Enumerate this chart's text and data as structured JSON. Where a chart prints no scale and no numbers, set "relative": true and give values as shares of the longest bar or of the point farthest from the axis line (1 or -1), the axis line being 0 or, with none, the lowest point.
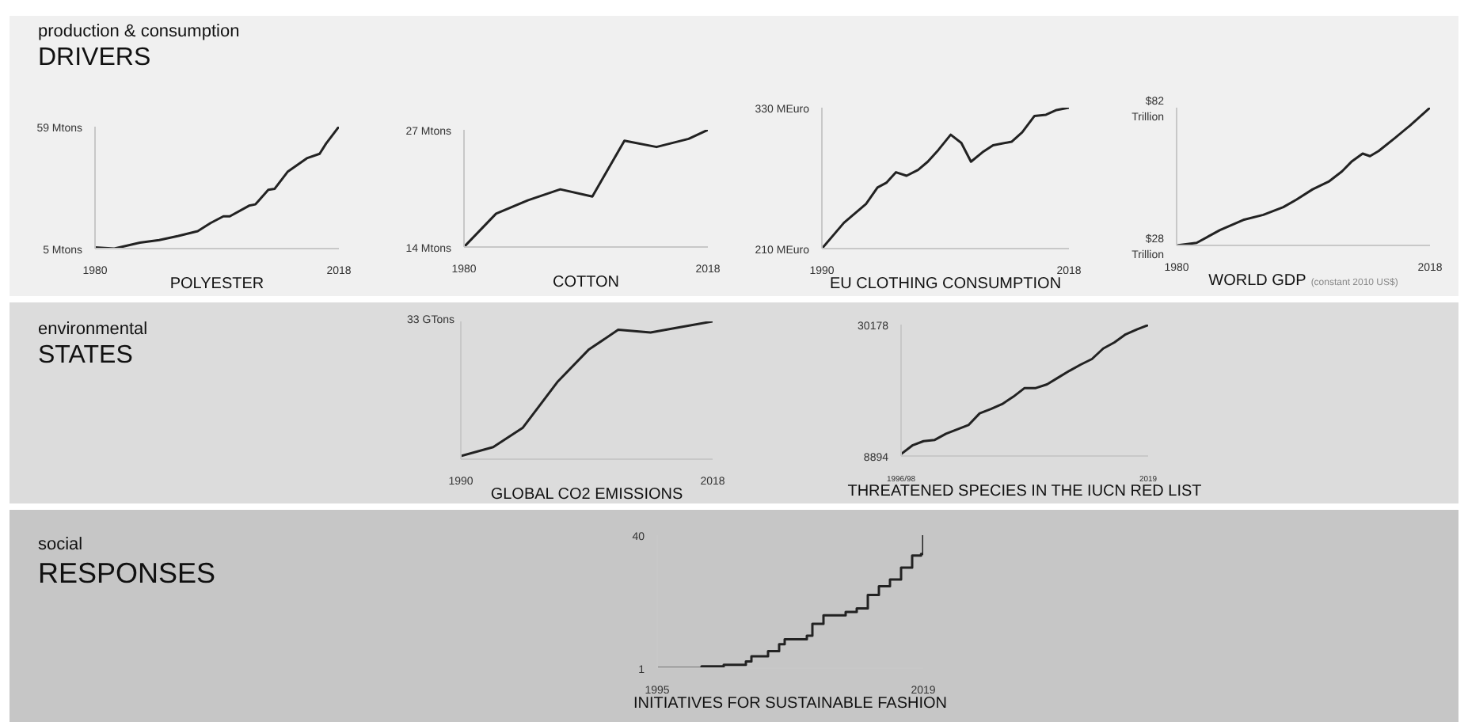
{
  "chart_data": [
    {
      "type": "other",
      "subtitle": "production & consumption",
      "title": "DRIVERS"
    },
    {
      "type": "line",
      "xlabel": "POLYESTER",
      "x": [
        1980,
        1983,
        1987,
        1990,
        1993,
        1996,
        1998,
        2000,
        2001,
        2004,
        2005,
        2007,
        2008,
        2010,
        2013,
        2015,
        2016,
        2018
      ],
      "series": [
        {
          "color": "#222222",
          "values": [
            5.5,
            5,
            7.6,
            8.8,
            10.6,
            12.7,
            16.3,
            19.3,
            19.3,
            24,
            24.6,
            31,
            31.5,
            39,
            45,
            47,
            51.5,
            59
          ]
        }
      ],
      "xlim": [
        1980,
        2018
      ],
      "xticks": [
        1980,
        2018
      ],
      "ylim": [
        5,
        59
      ],
      "yticks": [
        {
          "value": 5,
          "label": "5 Mtons"
        },
        {
          "value": 59,
          "label": "59 Mtons"
        }
      ]
    },
    {
      "type": "line",
      "xlabel": "COTTON",
      "x": [
        1980,
        1985,
        1990,
        1995,
        2000,
        2005,
        2010,
        2015,
        2018
      ],
      "series": [
        {
          "color": "#222222",
          "values": [
            14,
            17.7,
            19.2,
            20.4,
            19.6,
            25.8,
            25.1,
            26,
            27
          ]
        }
      ],
      "xlim": [
        1980,
        2018
      ],
      "xticks": [
        1980,
        2018
      ],
      "ylim": [
        14,
        27
      ],
      "yticks": [
        {
          "value": 14,
          "label": "14 Mtons"
        },
        {
          "value": 27,
          "label": "27 Mtons"
        }
      ]
    },
    {
      "type": "line",
      "xlabel": "EU CLOTHING CONSUMPTION",
      "x": [
        1990,
        1992.5,
        1995,
        1996.3,
        1997.3,
        1998.4,
        1999.6,
        2000.9,
        2002,
        2003.2,
        2004.6,
        2005.8,
        2006.9,
        2008.2,
        2009.4,
        2011.5,
        2012.7,
        2014.1,
        2015.4,
        2016.6,
        2018
      ],
      "series": [
        {
          "color": "#222222",
          "values": [
            210,
            232,
            248,
            262,
            266,
            275,
            272,
            277,
            284,
            294,
            307,
            300,
            284,
            292,
            298,
            301,
            309,
            323,
            324,
            328,
            330
          ]
        }
      ],
      "xlim": [
        1990,
        2018
      ],
      "xticks": [
        1990,
        2018
      ],
      "ylim": [
        210,
        330
      ],
      "yticks": [
        {
          "value": 210,
          "label": "210 MEuro"
        },
        {
          "value": 330,
          "label": "330 MEuro"
        }
      ]
    },
    {
      "type": "line",
      "xlabel": "WORLD GDP",
      "annotations": [
        "(constant 2010 US$)"
      ],
      "x": [
        1980,
        1983,
        1986.5,
        1990,
        1993,
        1996,
        1998,
        2000.4,
        2002.8,
        2004.8,
        2006.3,
        2007.9,
        2009,
        2010.3,
        2012.7,
        2015,
        2018
      ],
      "series": [
        {
          "color": "#222222",
          "values": [
            28,
            29,
            34,
            38,
            40,
            43,
            46,
            50,
            53,
            57,
            61,
            64,
            63,
            65,
            70,
            75,
            82
          ]
        }
      ],
      "xlim": [
        1980,
        2018
      ],
      "xticks": [
        1980,
        2018
      ],
      "ylim": [
        28,
        82
      ],
      "yticks": [
        {
          "value": 28,
          "label": "$28\nTrillion"
        },
        {
          "value": 82,
          "label": "$82\nTrillion"
        }
      ]
    },
    {
      "type": "other",
      "subtitle": "environmental",
      "title": "STATES"
    },
    {
      "type": "line",
      "relative": true,
      "xlabel": "GLOBAL CO2 EMISSIONS",
      "annotations": [
        "33 GTons"
      ],
      "x": [
        1990,
        1993.6,
        1996.9,
        2000.8,
        2004.2,
        2007.5,
        2011.1,
        2014.4,
        2018
      ],
      "series": [
        {
          "color": "#222222",
          "values": [
            0.023,
            0.088,
            0.229,
            0.565,
            0.794,
            0.939,
            0.92,
            0.958,
            1
          ]
        }
      ],
      "xlim": [
        1990,
        2018
      ],
      "xticks": [
        1990,
        2018
      ]
    },
    {
      "type": "line",
      "xlabel": "THREATENED SPECIES IN THE IUCN RED LIST",
      "categories": [
        "1996/98",
        null,
        null,
        null,
        null,
        null,
        null,
        null,
        null,
        null,
        null,
        null,
        null,
        null,
        null,
        null,
        null,
        null,
        null,
        null,
        null,
        null,
        "2019"
      ],
      "series": [
        {
          "color": "#222222",
          "values": [
            9200,
            10600,
            11300,
            11500,
            12500,
            13200,
            13900,
            15800,
            16500,
            17300,
            18500,
            19900,
            19900,
            20500,
            21600,
            22700,
            23700,
            24600,
            26300,
            27300,
            28600,
            29400,
            30100
          ]
        }
      ],
      "ylim": [
        8894,
        30178
      ],
      "yticks": [
        8894,
        30178
      ]
    },
    {
      "type": "other",
      "subtitle": "social",
      "title": "RESPONSES"
    },
    {
      "type": "step",
      "xlabel": "INITIATIVES FOR SUSTAINABLE FASHION",
      "x": [
        1995,
        1999,
        2001,
        2003,
        2003.5,
        2005,
        2006,
        2006.5,
        2008.5,
        2009,
        2010,
        2012,
        2013,
        2014,
        2015,
        2016,
        2017,
        2018,
        2018.8,
        2019
      ],
      "series": [
        {
          "color": "#222222",
          "values": [
            1,
            1.5,
            2,
            3,
            4.5,
            6,
            8,
            9.5,
            10.5,
            14,
            16.5,
            17.5,
            18.5,
            22.5,
            25,
            27,
            30.5,
            34,
            34.5,
            40
          ]
        }
      ],
      "xlim": [
        1995,
        2019
      ],
      "xticks": [
        1995,
        2019
      ],
      "ylim": [
        1,
        40
      ],
      "yticks": [
        1,
        40
      ]
    }
  ]
}
